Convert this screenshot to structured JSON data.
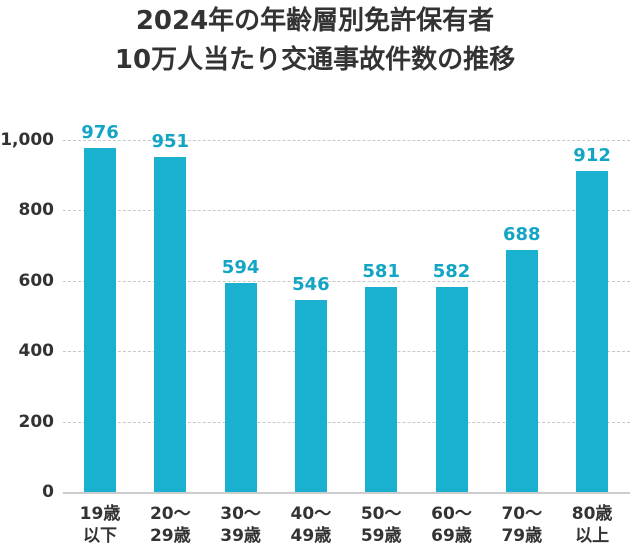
{
  "title": {
    "line1": "2024年の年齢層別免許保有者",
    "line2": "10万人当たり交通事故件数の推移"
  },
  "colors": {
    "bar": "#1ab1d1",
    "value_label": "#13a5c4",
    "text": "#333333",
    "grid": "#c8c8c8"
  },
  "yaxis": {
    "ticks": [
      "0",
      "200",
      "400",
      "600",
      "800",
      "1,000"
    ]
  },
  "bars": [
    {
      "line1": "19歳",
      "line2": "以下",
      "value": "976"
    },
    {
      "line1": "20～",
      "line2": "29歳",
      "value": "951"
    },
    {
      "line1": "30～",
      "line2": "39歳",
      "value": "594"
    },
    {
      "line1": "40～",
      "line2": "49歳",
      "value": "546"
    },
    {
      "line1": "50～",
      "line2": "59歳",
      "value": "581"
    },
    {
      "line1": "60～",
      "line2": "69歳",
      "value": "582"
    },
    {
      "line1": "70～",
      "line2": "79歳",
      "value": "688"
    },
    {
      "line1": "80歳",
      "line2": "以上",
      "value": "912"
    }
  ],
  "chart_data": {
    "type": "bar",
    "title": "2024年の年齢層別免許保有者10万人当たり交通事故件数の推移",
    "categories": [
      "19歳以下",
      "20～29歳",
      "30～39歳",
      "40～49歳",
      "50～59歳",
      "60～69歳",
      "70～79歳",
      "80歳以上"
    ],
    "values": [
      976,
      951,
      594,
      546,
      581,
      582,
      688,
      912
    ],
    "xlabel": "",
    "ylabel": "",
    "ylim": [
      0,
      1000
    ],
    "yticks": [
      0,
      200,
      400,
      600,
      800,
      1000
    ],
    "grid": true,
    "legend": null,
    "data_labels": true
  }
}
